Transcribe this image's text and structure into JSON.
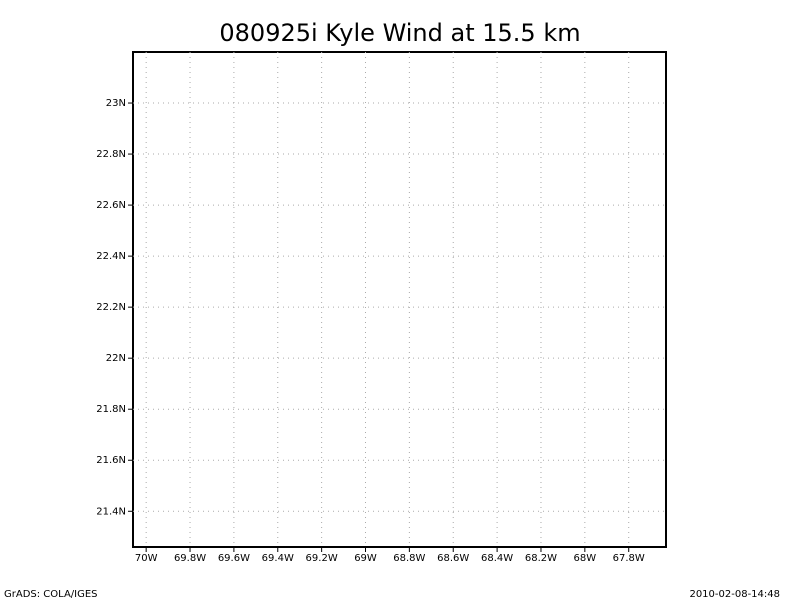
{
  "chart_data": {
    "type": "map",
    "title": "080925i Kyle Wind at 15.5 km",
    "xlim": [
      -70.06,
      -67.63
    ],
    "ylim": [
      21.26,
      23.2
    ],
    "xticks": [
      {
        "value": -70,
        "label": "70W"
      },
      {
        "value": -69.8,
        "label": "69.8W"
      },
      {
        "value": -69.6,
        "label": "69.6W"
      },
      {
        "value": -69.4,
        "label": "69.4W"
      },
      {
        "value": -69.2,
        "label": "69.2W"
      },
      {
        "value": -69,
        "label": "69W"
      },
      {
        "value": -68.8,
        "label": "68.8W"
      },
      {
        "value": -68.6,
        "label": "68.6W"
      },
      {
        "value": -68.4,
        "label": "68.4W"
      },
      {
        "value": -68.2,
        "label": "68.2W"
      },
      {
        "value": -68,
        "label": "68W"
      },
      {
        "value": -67.8,
        "label": "67.8W"
      }
    ],
    "yticks": [
      {
        "value": 21.4,
        "label": "21.4N"
      },
      {
        "value": 21.6,
        "label": "21.6N"
      },
      {
        "value": 21.8,
        "label": "21.8N"
      },
      {
        "value": 22,
        "label": "22N"
      },
      {
        "value": 22.2,
        "label": "22.2N"
      },
      {
        "value": 22.4,
        "label": "22.4N"
      },
      {
        "value": 22.6,
        "label": "22.6N"
      },
      {
        "value": 22.8,
        "label": "22.8N"
      },
      {
        "value": 23,
        "label": "23N"
      }
    ],
    "grid": true
  },
  "footer": {
    "left": "GrADS: COLA/IGES",
    "right": "2010-02-08-14:48"
  }
}
